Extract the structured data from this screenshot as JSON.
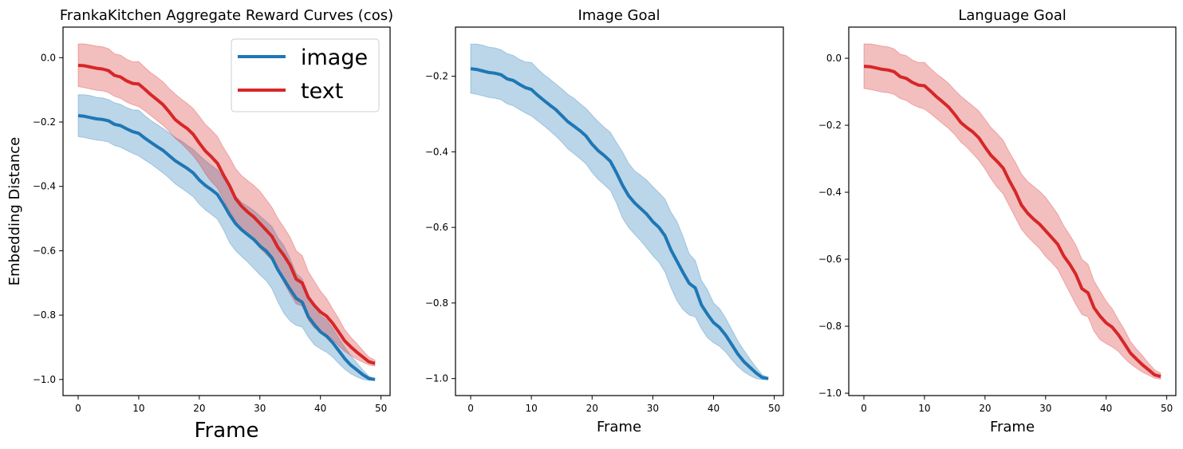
{
  "colors": {
    "image": "#1f77b4",
    "text": "#d62728",
    "image_band": "#1f77b4",
    "text_band": "#d62728"
  },
  "chart_data": [
    {
      "type": "line",
      "title": "FrankaKitchen Aggregate Reward Curves (cos)",
      "xlabel": "Frame",
      "ylabel": "Embedding Distance",
      "xlim": [
        -2.5,
        51.5
      ],
      "ylim": [
        -1.05,
        0.095
      ],
      "xticks": [
        0,
        10,
        20,
        30,
        40,
        50
      ],
      "yticks": [
        0.0,
        -0.2,
        -0.4,
        -0.6,
        -0.8,
        -1.0
      ],
      "ytick_labels": [
        "0.0",
        "−0.2",
        "−0.4",
        "−0.6",
        "−0.8",
        "−1.0"
      ],
      "grid": false,
      "legend": {
        "position": "upper right",
        "entries": [
          "image",
          "text"
        ]
      },
      "series_keys": [
        "image",
        "text"
      ]
    },
    {
      "type": "line",
      "title": "Image Goal",
      "xlabel": "Frame",
      "ylabel": "",
      "xlim": [
        -2.5,
        51.5
      ],
      "ylim": [
        -1.045,
        -0.07
      ],
      "xticks": [
        0,
        10,
        20,
        30,
        40,
        50
      ],
      "yticks": [
        -0.2,
        -0.4,
        -0.6,
        -0.8,
        -1.0
      ],
      "ytick_labels": [
        "−0.2",
        "−0.4",
        "−0.6",
        "−0.8",
        "−1.0"
      ],
      "grid": false,
      "series_keys": [
        "image"
      ]
    },
    {
      "type": "line",
      "title": "Language Goal",
      "xlabel": "Frame",
      "ylabel": "",
      "xlim": [
        -2.5,
        51.5
      ],
      "ylim": [
        -1.007,
        0.093
      ],
      "xticks": [
        0,
        10,
        20,
        30,
        40,
        50
      ],
      "yticks": [
        0.0,
        -0.2,
        -0.4,
        -0.6,
        -0.8,
        -1.0
      ],
      "ytick_labels": [
        "0.0",
        "−0.2",
        "−0.4",
        "−0.6",
        "−0.8",
        "−1.0"
      ],
      "grid": false,
      "series_keys": [
        "text"
      ]
    }
  ],
  "series": {
    "image": {
      "name": "image",
      "x": [
        0,
        1,
        2,
        3,
        4,
        5,
        6,
        7,
        8,
        9,
        10,
        11,
        12,
        13,
        14,
        15,
        16,
        17,
        18,
        19,
        20,
        21,
        22,
        23,
        24,
        25,
        26,
        27,
        28,
        29,
        30,
        31,
        32,
        33,
        34,
        35,
        36,
        37,
        38,
        39,
        40,
        41,
        42,
        43,
        44,
        45,
        46,
        47,
        48,
        49
      ],
      "mean": [
        -0.18,
        -0.182,
        -0.186,
        -0.19,
        -0.192,
        -0.196,
        -0.207,
        -0.211,
        -0.221,
        -0.23,
        -0.235,
        -0.25,
        -0.263,
        -0.276,
        -0.288,
        -0.304,
        -0.32,
        -0.332,
        -0.344,
        -0.358,
        -0.38,
        -0.397,
        -0.41,
        -0.425,
        -0.455,
        -0.488,
        -0.516,
        -0.535,
        -0.55,
        -0.565,
        -0.585,
        -0.6,
        -0.622,
        -0.66,
        -0.69,
        -0.72,
        -0.748,
        -0.76,
        -0.805,
        -0.83,
        -0.852,
        -0.865,
        -0.885,
        -0.91,
        -0.935,
        -0.955,
        -0.97,
        -0.985,
        -0.997,
        -1.0
      ],
      "upper": [
        -0.115,
        -0.115,
        -0.118,
        -0.123,
        -0.125,
        -0.13,
        -0.14,
        -0.145,
        -0.155,
        -0.162,
        -0.163,
        -0.18,
        -0.195,
        -0.207,
        -0.22,
        -0.233,
        -0.248,
        -0.258,
        -0.272,
        -0.285,
        -0.303,
        -0.32,
        -0.335,
        -0.348,
        -0.375,
        -0.4,
        -0.43,
        -0.45,
        -0.462,
        -0.475,
        -0.492,
        -0.508,
        -0.525,
        -0.56,
        -0.585,
        -0.625,
        -0.67,
        -0.688,
        -0.74,
        -0.765,
        -0.8,
        -0.815,
        -0.84,
        -0.87,
        -0.9,
        -0.925,
        -0.948,
        -0.97,
        -0.99,
        -0.997
      ],
      "lower": [
        -0.245,
        -0.248,
        -0.252,
        -0.256,
        -0.258,
        -0.262,
        -0.273,
        -0.278,
        -0.288,
        -0.297,
        -0.305,
        -0.318,
        -0.33,
        -0.344,
        -0.358,
        -0.374,
        -0.392,
        -0.405,
        -0.418,
        -0.432,
        -0.455,
        -0.473,
        -0.487,
        -0.502,
        -0.535,
        -0.575,
        -0.6,
        -0.618,
        -0.635,
        -0.655,
        -0.675,
        -0.692,
        -0.718,
        -0.76,
        -0.795,
        -0.818,
        -0.832,
        -0.837,
        -0.868,
        -0.892,
        -0.905,
        -0.915,
        -0.93,
        -0.95,
        -0.968,
        -0.982,
        -0.992,
        -1.0,
        -1.003,
        -1.003
      ]
    },
    "text": {
      "name": "text",
      "x": [
        0,
        1,
        2,
        3,
        4,
        5,
        6,
        7,
        8,
        9,
        10,
        11,
        12,
        13,
        14,
        15,
        16,
        17,
        18,
        19,
        20,
        21,
        22,
        23,
        24,
        25,
        26,
        27,
        28,
        29,
        30,
        31,
        32,
        33,
        34,
        35,
        36,
        37,
        38,
        39,
        40,
        41,
        42,
        43,
        44,
        45,
        46,
        47,
        48,
        49
      ],
      "mean": [
        -0.024,
        -0.025,
        -0.029,
        -0.033,
        -0.035,
        -0.04,
        -0.055,
        -0.06,
        -0.072,
        -0.08,
        -0.082,
        -0.098,
        -0.115,
        -0.13,
        -0.146,
        -0.168,
        -0.192,
        -0.207,
        -0.22,
        -0.238,
        -0.265,
        -0.29,
        -0.308,
        -0.328,
        -0.365,
        -0.398,
        -0.438,
        -0.462,
        -0.48,
        -0.495,
        -0.515,
        -0.535,
        -0.555,
        -0.59,
        -0.615,
        -0.645,
        -0.688,
        -0.7,
        -0.745,
        -0.77,
        -0.79,
        -0.803,
        -0.825,
        -0.852,
        -0.88,
        -0.898,
        -0.915,
        -0.93,
        -0.945,
        -0.95
      ],
      "upper": [
        0.043,
        0.043,
        0.04,
        0.036,
        0.034,
        0.028,
        0.012,
        0.008,
        -0.005,
        -0.013,
        -0.012,
        -0.03,
        -0.047,
        -0.06,
        -0.075,
        -0.095,
        -0.113,
        -0.128,
        -0.142,
        -0.158,
        -0.182,
        -0.207,
        -0.225,
        -0.245,
        -0.28,
        -0.31,
        -0.345,
        -0.367,
        -0.382,
        -0.397,
        -0.415,
        -0.44,
        -0.465,
        -0.5,
        -0.528,
        -0.558,
        -0.6,
        -0.615,
        -0.665,
        -0.695,
        -0.725,
        -0.748,
        -0.78,
        -0.81,
        -0.845,
        -0.868,
        -0.888,
        -0.91,
        -0.93,
        -0.94
      ],
      "lower": [
        -0.09,
        -0.093,
        -0.097,
        -0.101,
        -0.103,
        -0.108,
        -0.12,
        -0.126,
        -0.138,
        -0.146,
        -0.152,
        -0.165,
        -0.18,
        -0.195,
        -0.21,
        -0.228,
        -0.25,
        -0.266,
        -0.285,
        -0.305,
        -0.33,
        -0.36,
        -0.385,
        -0.405,
        -0.44,
        -0.475,
        -0.51,
        -0.532,
        -0.55,
        -0.568,
        -0.592,
        -0.61,
        -0.63,
        -0.665,
        -0.7,
        -0.735,
        -0.765,
        -0.772,
        -0.815,
        -0.84,
        -0.852,
        -0.862,
        -0.875,
        -0.895,
        -0.912,
        -0.925,
        -0.937,
        -0.946,
        -0.955,
        -0.958
      ]
    }
  }
}
